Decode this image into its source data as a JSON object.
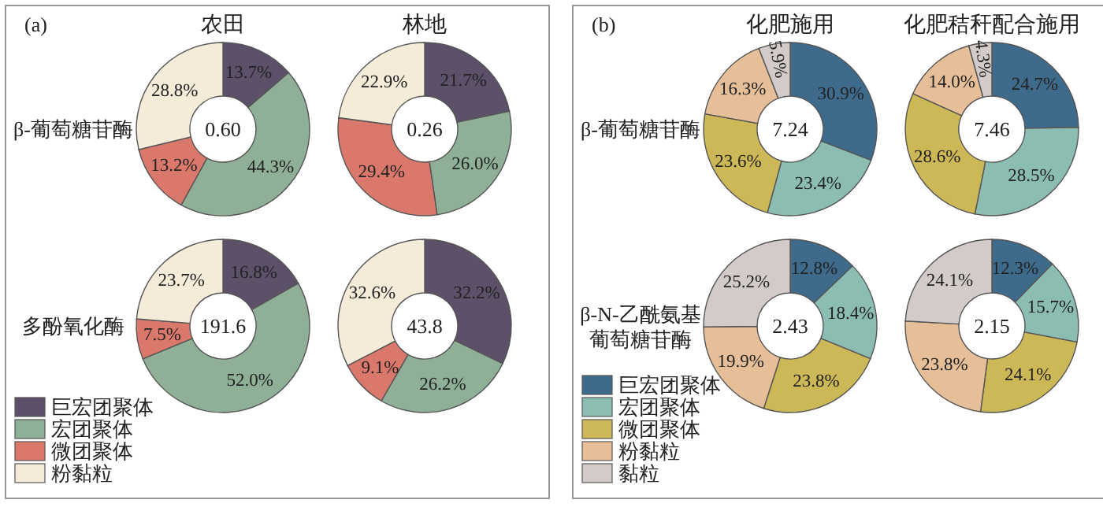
{
  "chart_data": [
    {
      "type": "donut",
      "title": "农田",
      "ylabel": "β-葡萄糖苷酶",
      "annotations": [
        "(a)",
        "0.60"
      ],
      "categories": [
        null,
        null,
        null,
        null
      ],
      "values": [
        13.7,
        44.3,
        13.2,
        28.8
      ],
      "value_labels": [
        "13.7%",
        "44.3%",
        "13.2%",
        "28.8%"
      ],
      "colors": [
        "#5d5069",
        "#8fb096",
        "#d9786b",
        "#f4ecd9"
      ]
    },
    {
      "type": "donut",
      "title": "林地",
      "annotations": [
        "0.26"
      ],
      "categories": [
        null,
        null,
        null,
        null
      ],
      "values": [
        21.7,
        26.0,
        29.4,
        22.9
      ],
      "value_labels": [
        "21.7%",
        "26.0%",
        "29.4%",
        "22.9%"
      ],
      "colors": [
        "#5d5069",
        "#8fb096",
        "#d9786b",
        "#f4ecd9"
      ]
    },
    {
      "type": "donut",
      "ylabel": "多酚氧化酶",
      "annotations": [
        "191.6"
      ],
      "categories": [
        "巨宏团聚体",
        "宏团聚体",
        "微团聚体",
        "粉黏粒"
      ],
      "values": [
        16.8,
        52.0,
        7.5,
        23.7
      ],
      "value_labels": [
        "16.8%",
        "52.0%",
        "7.5%",
        "23.7%"
      ],
      "colors": [
        "#5d5069",
        "#8fb096",
        "#d9786b",
        "#f4ecd9"
      ],
      "legend": "bottom left"
    },
    {
      "type": "donut",
      "annotations": [
        "43.8"
      ],
      "categories": [
        null,
        null,
        null,
        null
      ],
      "values": [
        32.2,
        26.2,
        9.1,
        32.6
      ],
      "value_labels": [
        "32.2%",
        "26.2%",
        "9.1%",
        "32.6%"
      ],
      "colors": [
        "#5d5069",
        "#8fb096",
        "#d9786b",
        "#f4ecd9"
      ]
    },
    {
      "type": "donut",
      "title": "化肥施用",
      "ylabel": "β-葡萄糖苷酶",
      "annotations": [
        "(b)",
        "7.24"
      ],
      "categories": [
        null,
        null,
        null,
        null,
        null
      ],
      "values": [
        30.9,
        23.4,
        23.6,
        16.3,
        5.9
      ],
      "value_labels": [
        "30.9%",
        "23.4%",
        "23.6%",
        "16.3%",
        "5.9%"
      ],
      "colors": [
        "#3e6a8c",
        "#8bbdb3",
        "#cdb857",
        "#e6bf98",
        "#d3caca"
      ]
    },
    {
      "type": "donut",
      "title": "化肥秸秆配合施用",
      "annotations": [
        "7.46"
      ],
      "categories": [
        null,
        null,
        null,
        null,
        null
      ],
      "values": [
        24.7,
        28.5,
        28.6,
        14.0,
        4.3
      ],
      "value_labels": [
        "24.7%",
        "28.5%",
        "28.6%",
        "14.0%",
        "4.3%"
      ],
      "colors": [
        "#3e6a8c",
        "#8bbdb3",
        "#cdb857",
        "#e6bf98",
        "#d3caca"
      ]
    },
    {
      "type": "donut",
      "ylabel": "β-N-乙酰氨基葡萄糖苷酶",
      "annotations": [
        "2.43"
      ],
      "categories": [
        "巨宏团聚体",
        "宏团聚体",
        "微团聚体",
        "粉黏粒",
        "黏粒"
      ],
      "values": [
        12.8,
        18.4,
        23.8,
        19.9,
        25.2
      ],
      "value_labels": [
        "12.8%",
        "18.4%",
        "23.8%",
        "19.9%",
        "25.2%"
      ],
      "colors": [
        "#3e6a8c",
        "#8bbdb3",
        "#cdb857",
        "#e6bf98",
        "#d3caca"
      ],
      "legend": "bottom left"
    },
    {
      "type": "donut",
      "annotations": [
        "2.15"
      ],
      "categories": [
        null,
        null,
        null,
        null,
        null
      ],
      "values": [
        12.3,
        15.7,
        24.1,
        23.8,
        24.1
      ],
      "value_labels": [
        "12.3%",
        "15.7%",
        "24.1%",
        "23.8%",
        "24.1%"
      ],
      "colors": [
        "#3e6a8c",
        "#8bbdb3",
        "#cdb857",
        "#e6bf98",
        "#d3caca"
      ]
    }
  ]
}
